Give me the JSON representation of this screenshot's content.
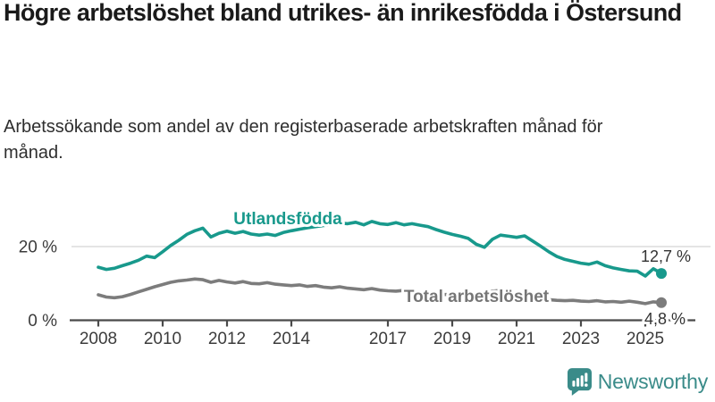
{
  "header": {
    "title": "Högre arbetslöshet bland utrikes- än inrikesfödda i Östersund",
    "subtitle": "Arbetssökande som andel av den registerbaserade arbetskraften månad för månad."
  },
  "footer": {
    "brand": "Newsworthy"
  },
  "colors": {
    "series_foreign": "#18998c",
    "series_total": "#7c7c7c",
    "series_total_label": "#757575",
    "grid": "#dcdcdc",
    "axis": "#4a4a4a",
    "tick_text": "#3c3c3c",
    "value_text": "#333333",
    "title_text": "#1a1a1a",
    "brand": "#3a8b89"
  },
  "chart_data": {
    "type": "line",
    "title": "Högre arbetslöshet bland utrikes- än inrikesfödda i Östersund",
    "subtitle": "Arbetssökande som andel av den registerbaserade arbetskraften månad för månad.",
    "unit": "%",
    "grid": "horizontal-only",
    "legend": "inline-labels-on-lines",
    "x_start": 2008.0,
    "x_step_years": 0.25,
    "xlim": [
      2008,
      2025.5
    ],
    "ylim": [
      0,
      30
    ],
    "x_ticks": [
      2008,
      2010,
      2012,
      2014,
      2017,
      2019,
      2021,
      2023,
      2025
    ],
    "y_ticks": [
      {
        "value": 0,
        "label": "0 %"
      },
      {
        "value": 20,
        "label": "20 %"
      }
    ],
    "series": [
      {
        "name": "Utlandsfödda",
        "end_label": "12,7 %",
        "final_value": 12.7,
        "color_key": "series_foreign",
        "values": [
          14.4,
          13.8,
          14.1,
          14.8,
          15.5,
          16.3,
          17.4,
          17.0,
          18.6,
          20.3,
          21.7,
          23.3,
          24.3,
          25.0,
          22.6,
          23.6,
          24.2,
          23.6,
          24.1,
          23.4,
          23.1,
          23.4,
          23.0,
          23.8,
          24.3,
          24.7,
          25.1,
          25.4,
          25.7,
          26.0,
          26.4,
          26.2,
          26.6,
          25.9,
          26.8,
          26.2,
          26.0,
          26.5,
          25.9,
          26.2,
          25.8,
          25.4,
          24.6,
          23.9,
          23.3,
          22.8,
          22.2,
          20.6,
          19.8,
          22.0,
          23.1,
          22.8,
          22.5,
          22.9,
          21.5,
          20.1,
          18.6,
          17.3,
          16.5,
          16.0,
          15.5,
          15.2,
          15.8,
          14.8,
          14.2,
          13.8,
          13.4,
          13.3,
          12.0,
          14.0,
          12.7
        ]
      },
      {
        "name": "Total arbetslöshet",
        "end_label": "4,8 %",
        "final_value": 4.8,
        "color_key": "series_total",
        "values": [
          6.9,
          6.3,
          6.1,
          6.4,
          7.0,
          7.7,
          8.4,
          9.1,
          9.7,
          10.3,
          10.7,
          10.9,
          11.2,
          11.0,
          10.3,
          10.8,
          10.4,
          10.1,
          10.5,
          10.0,
          9.9,
          10.2,
          9.8,
          9.6,
          9.4,
          9.6,
          9.2,
          9.4,
          9.0,
          8.8,
          9.1,
          8.7,
          8.5,
          8.3,
          8.6,
          8.2,
          8.0,
          7.9,
          8.1,
          7.8,
          7.5,
          7.3,
          7.2,
          7.0,
          6.9,
          6.8,
          6.9,
          6.7,
          6.8,
          7.9,
          8.1,
          7.7,
          7.3,
          6.8,
          6.3,
          5.9,
          5.6,
          5.4,
          5.3,
          5.4,
          5.2,
          5.1,
          5.3,
          5.0,
          5.1,
          4.9,
          5.2,
          4.9,
          4.5,
          5.0,
          4.8
        ]
      }
    ]
  }
}
